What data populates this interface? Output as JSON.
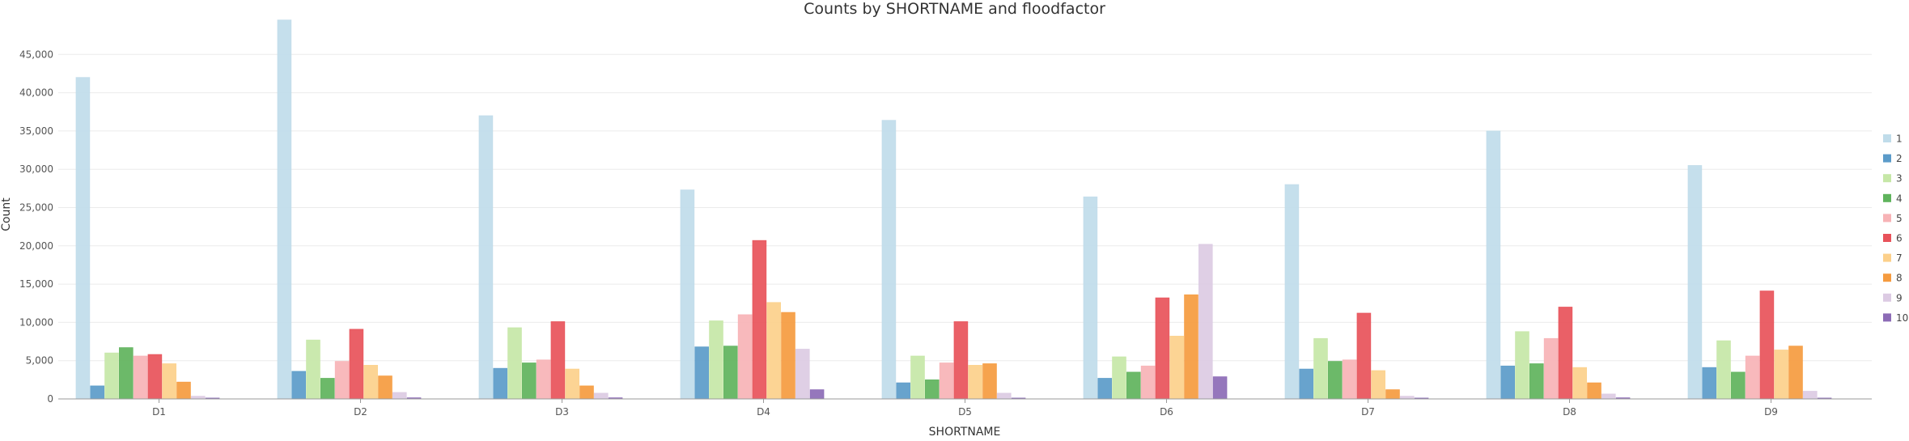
{
  "chart_data": {
    "type": "bar",
    "title": "Counts by SHORTNAME and floodfactor",
    "xlabel": "SHORTNAME",
    "ylabel": "Count",
    "ylim": [
      0,
      50000
    ],
    "yticks": [
      0,
      5000,
      10000,
      15000,
      20000,
      25000,
      30000,
      35000,
      40000,
      45000
    ],
    "ytick_labels": [
      "0",
      "5,000",
      "10,000",
      "15,000",
      "20,000",
      "25,000",
      "30,000",
      "35,000",
      "40,000",
      "45,000"
    ],
    "grid": true,
    "legend_position": "right",
    "categories": [
      "D1",
      "D2",
      "D3",
      "D4",
      "D5",
      "D6",
      "D7",
      "D8",
      "D9"
    ],
    "series": [
      {
        "name": "1",
        "color": "#c0dcea",
        "values": [
          42000,
          49500,
          37000,
          27300,
          36400,
          26400,
          28000,
          35000,
          30500
        ]
      },
      {
        "name": "2",
        "color": "#5b9bc9",
        "values": [
          1700,
          3600,
          4000,
          6800,
          2100,
          2700,
          3900,
          4300,
          4100
        ]
      },
      {
        "name": "3",
        "color": "#c6e7a7",
        "values": [
          6000,
          7700,
          9300,
          10200,
          5600,
          5500,
          7900,
          8800,
          7600
        ]
      },
      {
        "name": "4",
        "color": "#5fb35c",
        "values": [
          6700,
          2700,
          4700,
          6900,
          2500,
          3500,
          4900,
          4600,
          3500
        ]
      },
      {
        "name": "5",
        "color": "#f7b3b6",
        "values": [
          5600,
          4900,
          5100,
          11000,
          4700,
          4300,
          5100,
          7900,
          5600
        ]
      },
      {
        "name": "6",
        "color": "#e8525a",
        "values": [
          5800,
          9100,
          10100,
          20700,
          10100,
          13200,
          11200,
          12000,
          14100
        ]
      },
      {
        "name": "7",
        "color": "#fcd08b",
        "values": [
          4600,
          4400,
          3900,
          12600,
          4400,
          8200,
          3700,
          4100,
          6400
        ]
      },
      {
        "name": "8",
        "color": "#f59b3f",
        "values": [
          2200,
          3000,
          1700,
          11300,
          4600,
          13600,
          1200,
          2100,
          6900
        ]
      },
      {
        "name": "9",
        "color": "#dccbe3",
        "values": [
          350,
          850,
          750,
          6500,
          750,
          20200,
          350,
          650,
          1000
        ]
      },
      {
        "name": "10",
        "color": "#8c6bb6",
        "values": [
          120,
          150,
          150,
          1200,
          120,
          2900,
          120,
          150,
          120
        ]
      }
    ]
  }
}
